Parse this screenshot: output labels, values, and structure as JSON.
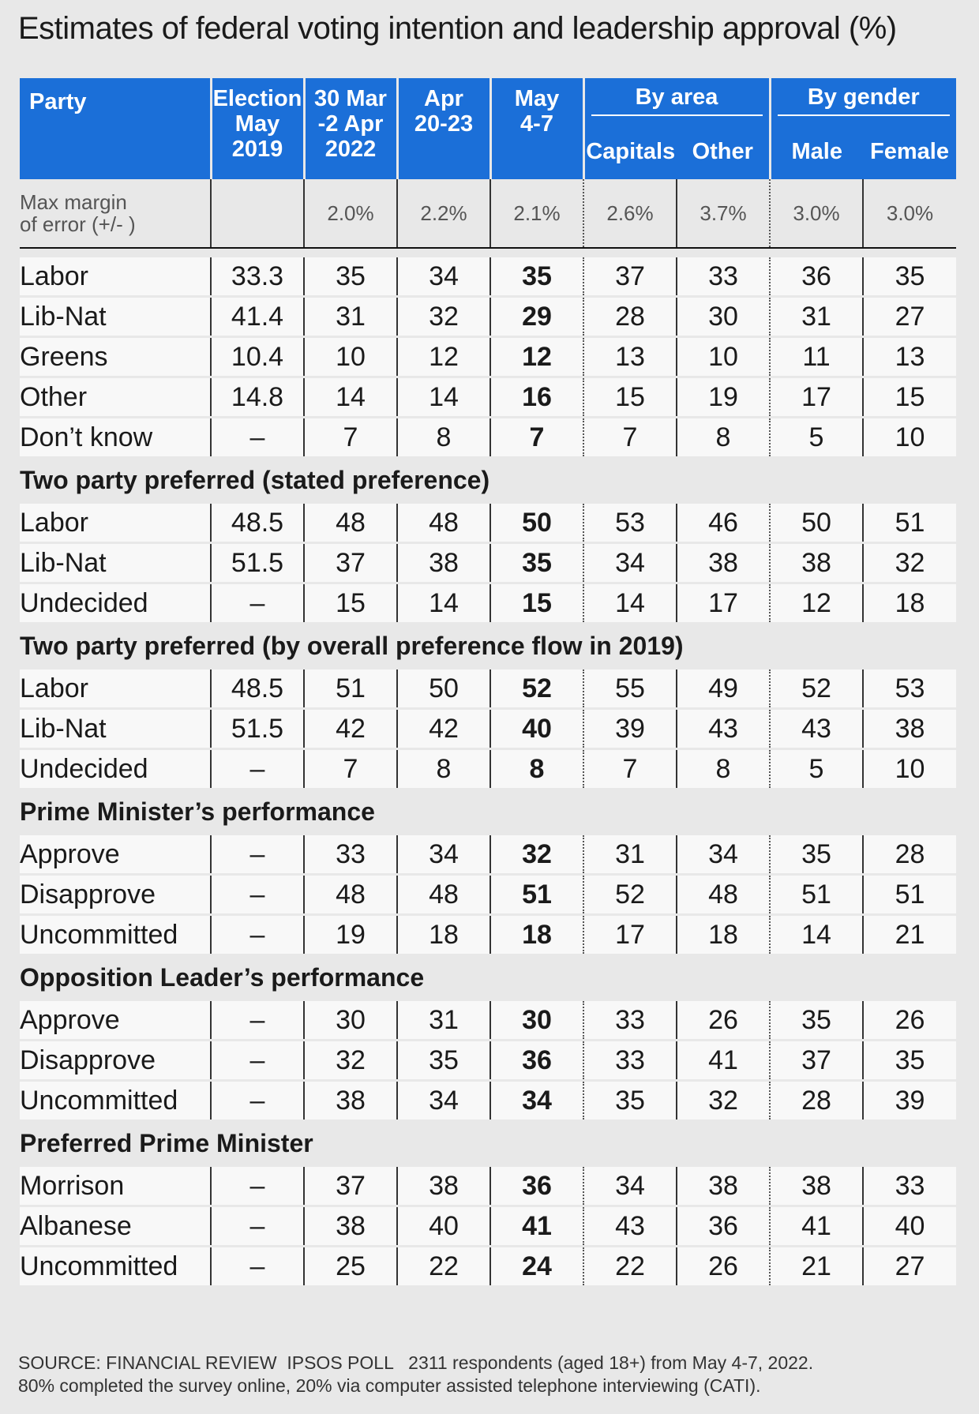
{
  "title": "Estimates of federal voting intention and leadership approval (%)",
  "table": {
    "header": {
      "party": "Party",
      "columns": [
        [
          "Election",
          "May",
          "2019"
        ],
        [
          "30 Mar",
          "-2 Apr",
          "2022"
        ],
        [
          "Apr",
          "20-23"
        ],
        [
          "May",
          "4-7"
        ]
      ],
      "groups": [
        {
          "title": "By area",
          "columns": [
            "Capitals",
            "Other"
          ]
        },
        {
          "title": "By gender",
          "columns": [
            "Male",
            "Female"
          ]
        }
      ]
    },
    "margin": {
      "label": [
        "Max margin",
        "of error (+/- )"
      ],
      "values": [
        "2.0%",
        "2.2%",
        "2.1%",
        "2.6%",
        "3.7%",
        "3.0%",
        "3.0%"
      ]
    },
    "blocks": [
      {
        "rows": [
          [
            "Labor",
            "33.3",
            "35",
            "34",
            "35",
            "37",
            "33",
            "36",
            "35"
          ],
          [
            "Lib-Nat",
            "41.4",
            "31",
            "32",
            "29",
            "28",
            "30",
            "31",
            "27"
          ],
          [
            "Greens",
            "10.4",
            "10",
            "12",
            "12",
            "13",
            "10",
            "11",
            "13"
          ],
          [
            "Other",
            "14.8",
            "14",
            "14",
            "16",
            "15",
            "19",
            "17",
            "15"
          ],
          [
            "Don’t know",
            "–",
            "7",
            "8",
            "7",
            "7",
            "8",
            "5",
            "10"
          ]
        ]
      },
      {
        "title": "Two party preferred (stated preference)",
        "rows": [
          [
            "Labor",
            "48.5",
            "48",
            "48",
            "50",
            "53",
            "46",
            "50",
            "51"
          ],
          [
            "Lib-Nat",
            "51.5",
            "37",
            "38",
            "35",
            "34",
            "38",
            "38",
            "32"
          ],
          [
            "Undecided",
            "–",
            "15",
            "14",
            "15",
            "14",
            "17",
            "12",
            "18"
          ]
        ]
      },
      {
        "title": "Two party preferred (by overall preference flow in 2019)",
        "rows": [
          [
            "Labor",
            "48.5",
            "51",
            "50",
            "52",
            "55",
            "49",
            "52",
            "53"
          ],
          [
            "Lib-Nat",
            "51.5",
            "42",
            "42",
            "40",
            "39",
            "43",
            "43",
            "38"
          ],
          [
            "Undecided",
            "–",
            "7",
            "8",
            "8",
            "7",
            "8",
            "5",
            "10"
          ]
        ]
      },
      {
        "title": "Prime Minister’s performance",
        "rows": [
          [
            "Approve",
            "–",
            "33",
            "34",
            "32",
            "31",
            "34",
            "35",
            "28"
          ],
          [
            "Disapprove",
            "–",
            "48",
            "48",
            "51",
            "52",
            "48",
            "51",
            "51"
          ],
          [
            "Uncommitted",
            "–",
            "19",
            "18",
            "18",
            "17",
            "18",
            "14",
            "21"
          ]
        ]
      },
      {
        "title": "Opposition Leader’s performance",
        "rows": [
          [
            "Approve",
            "–",
            "30",
            "31",
            "30",
            "33",
            "26",
            "35",
            "26"
          ],
          [
            "Disapprove",
            "–",
            "32",
            "35",
            "36",
            "33",
            "41",
            "37",
            "35"
          ],
          [
            "Uncommitted",
            "–",
            "38",
            "34",
            "34",
            "35",
            "32",
            "28",
            "39"
          ]
        ]
      },
      {
        "title": "Preferred Prime Minister",
        "rows": [
          [
            "Morrison",
            "–",
            "37",
            "38",
            "36",
            "34",
            "38",
            "38",
            "33"
          ],
          [
            "Albanese",
            "–",
            "38",
            "40",
            "41",
            "43",
            "36",
            "41",
            "40"
          ],
          [
            "Uncommitted",
            "–",
            "25",
            "22",
            "24",
            "22",
            "26",
            "21",
            "27"
          ]
        ]
      }
    ]
  },
  "source": [
    "SOURCE: FINANCIAL REVIEW  IPSOS POLL   2311 respondents (aged 18+) from May 4-7, 2022.",
    "80% completed the survey online, 20% via computer assisted telephone interviewing (CATI)."
  ]
}
